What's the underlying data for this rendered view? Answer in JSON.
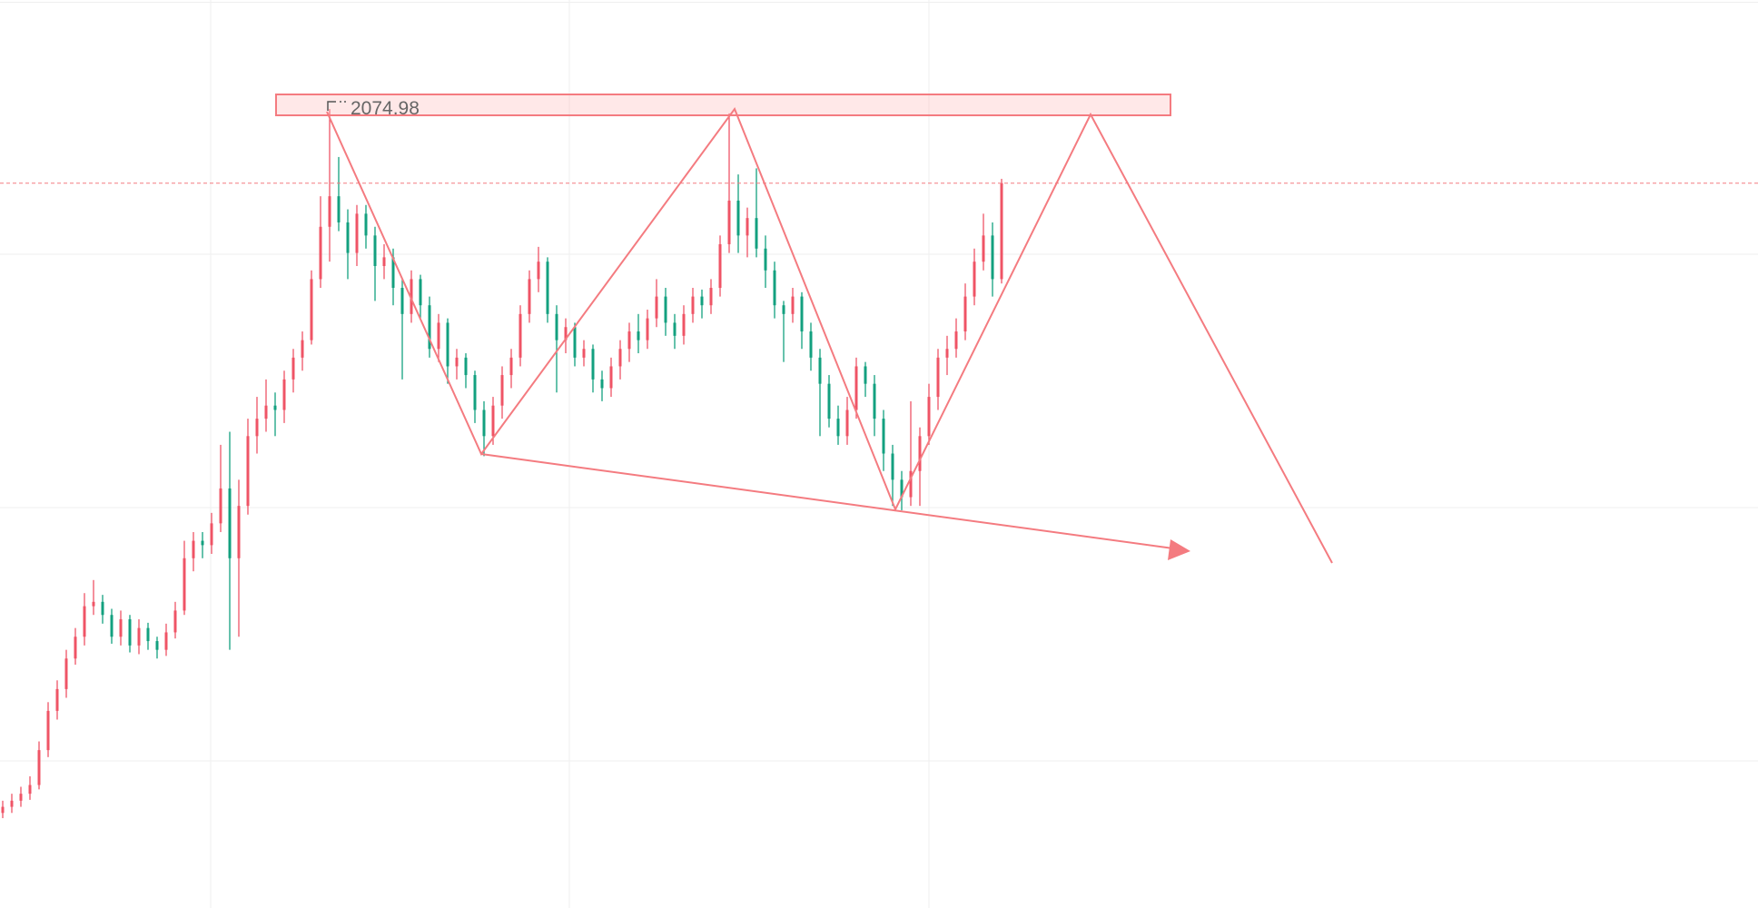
{
  "chart_data": {
    "type": "candlestick",
    "up_color": "#ef5466",
    "down_color": "#13a07f",
    "ylim": [
      1159,
      2200
    ],
    "candles": [
      [
        1268,
        1282,
        1262,
        1275
      ],
      [
        1275,
        1290,
        1268,
        1282
      ],
      [
        1282,
        1298,
        1275,
        1290
      ],
      [
        1290,
        1310,
        1283,
        1300
      ],
      [
        1300,
        1350,
        1295,
        1340
      ],
      [
        1340,
        1395,
        1332,
        1385
      ],
      [
        1385,
        1420,
        1375,
        1410
      ],
      [
        1410,
        1455,
        1400,
        1445
      ],
      [
        1445,
        1480,
        1438,
        1470
      ],
      [
        1470,
        1520,
        1460,
        1505
      ],
      [
        1505,
        1535,
        1495,
        1510
      ],
      [
        1510,
        1518,
        1485,
        1495
      ],
      [
        1495,
        1502,
        1462,
        1470
      ],
      [
        1470,
        1500,
        1460,
        1490
      ],
      [
        1490,
        1495,
        1452,
        1460
      ],
      [
        1460,
        1490,
        1450,
        1480
      ],
      [
        1480,
        1486,
        1455,
        1465
      ],
      [
        1465,
        1470,
        1445,
        1455
      ],
      [
        1455,
        1485,
        1448,
        1475
      ],
      [
        1475,
        1510,
        1468,
        1500
      ],
      [
        1500,
        1580,
        1495,
        1560
      ],
      [
        1560,
        1590,
        1545,
        1580
      ],
      [
        1580,
        1590,
        1560,
        1575
      ],
      [
        1575,
        1612,
        1565,
        1600
      ],
      [
        1600,
        1690,
        1590,
        1640
      ],
      [
        1640,
        1705,
        1455,
        1560
      ],
      [
        1560,
        1650,
        1470,
        1620
      ],
      [
        1620,
        1720,
        1610,
        1700
      ],
      [
        1700,
        1745,
        1680,
        1720
      ],
      [
        1720,
        1765,
        1705,
        1735
      ],
      [
        1735,
        1750,
        1700,
        1730
      ],
      [
        1730,
        1775,
        1715,
        1765
      ],
      [
        1765,
        1800,
        1750,
        1790
      ],
      [
        1790,
        1820,
        1775,
        1810
      ],
      [
        1810,
        1890,
        1805,
        1880
      ],
      [
        1880,
        1975,
        1870,
        1940
      ],
      [
        1940,
        2074.98,
        1900,
        1975
      ],
      [
        1975,
        2020,
        1935,
        1945
      ],
      [
        1945,
        1960,
        1880,
        1910
      ],
      [
        1910,
        1965,
        1895,
        1955
      ],
      [
        1955,
        1965,
        1915,
        1930
      ],
      [
        1930,
        1940,
        1855,
        1895
      ],
      [
        1895,
        1920,
        1880,
        1905
      ],
      [
        1905,
        1915,
        1850,
        1870
      ],
      [
        1870,
        1880,
        1765,
        1840
      ],
      [
        1840,
        1890,
        1830,
        1880
      ],
      [
        1880,
        1885,
        1835,
        1850
      ],
      [
        1850,
        1860,
        1790,
        1800
      ],
      [
        1800,
        1840,
        1785,
        1830
      ],
      [
        1830,
        1835,
        1760,
        1780
      ],
      [
        1780,
        1800,
        1765,
        1790
      ],
      [
        1790,
        1795,
        1755,
        1770
      ],
      [
        1770,
        1775,
        1715,
        1730
      ],
      [
        1730,
        1740,
        1677,
        1700
      ],
      [
        1700,
        1745,
        1690,
        1735
      ],
      [
        1735,
        1780,
        1720,
        1770
      ],
      [
        1770,
        1800,
        1755,
        1790
      ],
      [
        1790,
        1850,
        1780,
        1840
      ],
      [
        1840,
        1890,
        1830,
        1880
      ],
      [
        1880,
        1917,
        1865,
        1900
      ],
      [
        1900,
        1905,
        1830,
        1840
      ],
      [
        1840,
        1850,
        1750,
        1810
      ],
      [
        1810,
        1835,
        1795,
        1825
      ],
      [
        1825,
        1830,
        1780,
        1790
      ],
      [
        1790,
        1810,
        1780,
        1800
      ],
      [
        1800,
        1805,
        1750,
        1765
      ],
      [
        1765,
        1775,
        1740,
        1755
      ],
      [
        1755,
        1790,
        1745,
        1780
      ],
      [
        1780,
        1810,
        1765,
        1800
      ],
      [
        1800,
        1830,
        1785,
        1820
      ],
      [
        1820,
        1840,
        1795,
        1810
      ],
      [
        1810,
        1845,
        1800,
        1835
      ],
      [
        1835,
        1880,
        1825,
        1860
      ],
      [
        1860,
        1870,
        1815,
        1830
      ],
      [
        1830,
        1840,
        1800,
        1815
      ],
      [
        1815,
        1850,
        1805,
        1840
      ],
      [
        1840,
        1870,
        1830,
        1860
      ],
      [
        1860,
        1868,
        1835,
        1850
      ],
      [
        1850,
        1880,
        1840,
        1870
      ],
      [
        1870,
        1930,
        1860,
        1920
      ],
      [
        1920,
        2070,
        1910,
        1970
      ],
      [
        1970,
        2000,
        1910,
        1930
      ],
      [
        1930,
        1962,
        1905,
        1950
      ],
      [
        1950,
        2007,
        1905,
        1915
      ],
      [
        1915,
        1930,
        1870,
        1890
      ],
      [
        1890,
        1900,
        1835,
        1850
      ],
      [
        1850,
        1855,
        1785,
        1840
      ],
      [
        1840,
        1870,
        1830,
        1860
      ],
      [
        1860,
        1865,
        1800,
        1820
      ],
      [
        1820,
        1830,
        1775,
        1790
      ],
      [
        1790,
        1800,
        1700,
        1760
      ],
      [
        1760,
        1770,
        1710,
        1720
      ],
      [
        1720,
        1735,
        1690,
        1700
      ],
      [
        1700,
        1745,
        1690,
        1730
      ],
      [
        1730,
        1790,
        1720,
        1780
      ],
      [
        1780,
        1785,
        1745,
        1760
      ],
      [
        1760,
        1770,
        1700,
        1720
      ],
      [
        1720,
        1730,
        1660,
        1680
      ],
      [
        1680,
        1690,
        1620,
        1650
      ],
      [
        1650,
        1660,
        1615,
        1630
      ],
      [
        1630,
        1740,
        1620,
        1660
      ],
      [
        1660,
        1710,
        1620,
        1700
      ],
      [
        1700,
        1760,
        1690,
        1745
      ],
      [
        1745,
        1800,
        1730,
        1790
      ],
      [
        1790,
        1815,
        1770,
        1800
      ],
      [
        1800,
        1835,
        1790,
        1820
      ],
      [
        1820,
        1875,
        1810,
        1860
      ],
      [
        1860,
        1915,
        1850,
        1900
      ],
      [
        1900,
        1955,
        1890,
        1930
      ],
      [
        1930,
        1945,
        1860,
        1880
      ],
      [
        1880,
        1995,
        1875,
        1990
      ]
    ]
  }
}
